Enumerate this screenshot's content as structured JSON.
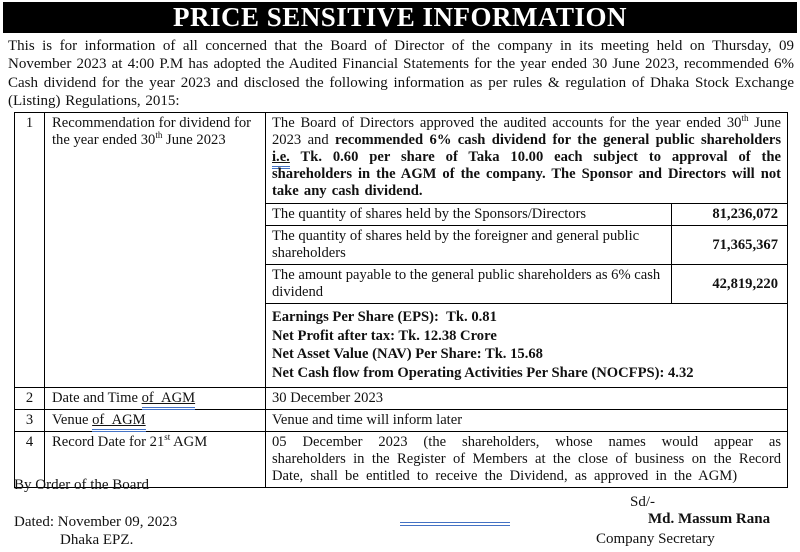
{
  "title": "PRICE SENSITIVE INFORMATION",
  "intro": "This is for information of all concerned that the Board of Director of the company in its meeting held on Thursday, 09 November 2023 at 4:00 P.M has adopted the Audited Financial Statements for the year ended 30 June 2023, recommended 6% Cash dividend for the year 2023 and disclosed the following information as per rules & regulation of Dhaka Stock Exchange (Listing) Regulations, 2015:",
  "colors": {
    "accent_blue": "#4472c4",
    "header_bg": "#000000"
  },
  "table": {
    "row1": {
      "num": "1",
      "label_rich": [
        {
          "t": "Recommendation for dividend for the year ended 30"
        },
        {
          "t": "th",
          "sup": true
        },
        {
          "t": " June 2023"
        }
      ],
      "para_rich": [
        {
          "t": "The Board of Directors approved the audited accounts for the year ended 30"
        },
        {
          "t": "th",
          "sup": true
        },
        {
          "t": " June 2023 and "
        },
        {
          "t": "recommended 6% cash dividend for the general public shareholders ",
          "b": true
        },
        {
          "t": "i.e.",
          "b": true,
          "u": true
        },
        {
          "t": " Tk. 0.60 per share of Taka 10.00 each subject to approval of the shareholders in the AGM of the company. The Sponsor and Directors will not take any cash dividend.",
          "b": true
        }
      ],
      "subrows": [
        {
          "label": "The quantity of shares held by the Sponsors/Directors",
          "value": "81,236,072"
        },
        {
          "label": "The quantity of shares held by the foreigner and general public shareholders",
          "value": "71,365,367"
        },
        {
          "label": "The amount payable to the general public shareholders as 6% cash dividend",
          "value": "42,819,220"
        }
      ],
      "metrics": [
        "Earnings Per Share (EPS):  Tk. 0.81",
        "Net Profit after tax: Tk. 12.38 Crore",
        "Net Asset Value (NAV) Per Share: Tk. 15.68",
        "Net Cash flow from Operating Activities Per Share (NOCFPS): 4.32"
      ]
    },
    "row2": {
      "num": "2",
      "label_rich": [
        {
          "t": "Date and Time "
        },
        {
          "t": "of  AGM",
          "u": true
        }
      ],
      "value": "30 December 2023"
    },
    "row3": {
      "num": "3",
      "label_rich": [
        {
          "t": "Venue "
        },
        {
          "t": "of  AGM",
          "u": true
        }
      ],
      "value": "Venue and time will inform later"
    },
    "row4": {
      "num": "4",
      "label_rich": [
        {
          "t": "Record Date for 21"
        },
        {
          "t": "st",
          "sup": true
        },
        {
          "t": " AGM"
        }
      ],
      "value": "05 December 2023 (the shareholders, whose names would appear as shareholders in the Register of Members at the close of business on the Record Date, shall be entitled to receive the Dividend, as approved in the AGM)"
    }
  },
  "footer": {
    "by_order": "By Order of the Board",
    "sd": "Sd/-",
    "dated": "Dated: November 09, 2023",
    "place": "Dhaka EPZ.",
    "signatory_name": "Md. Massum Rana",
    "signatory_title": "Company Secretary"
  }
}
